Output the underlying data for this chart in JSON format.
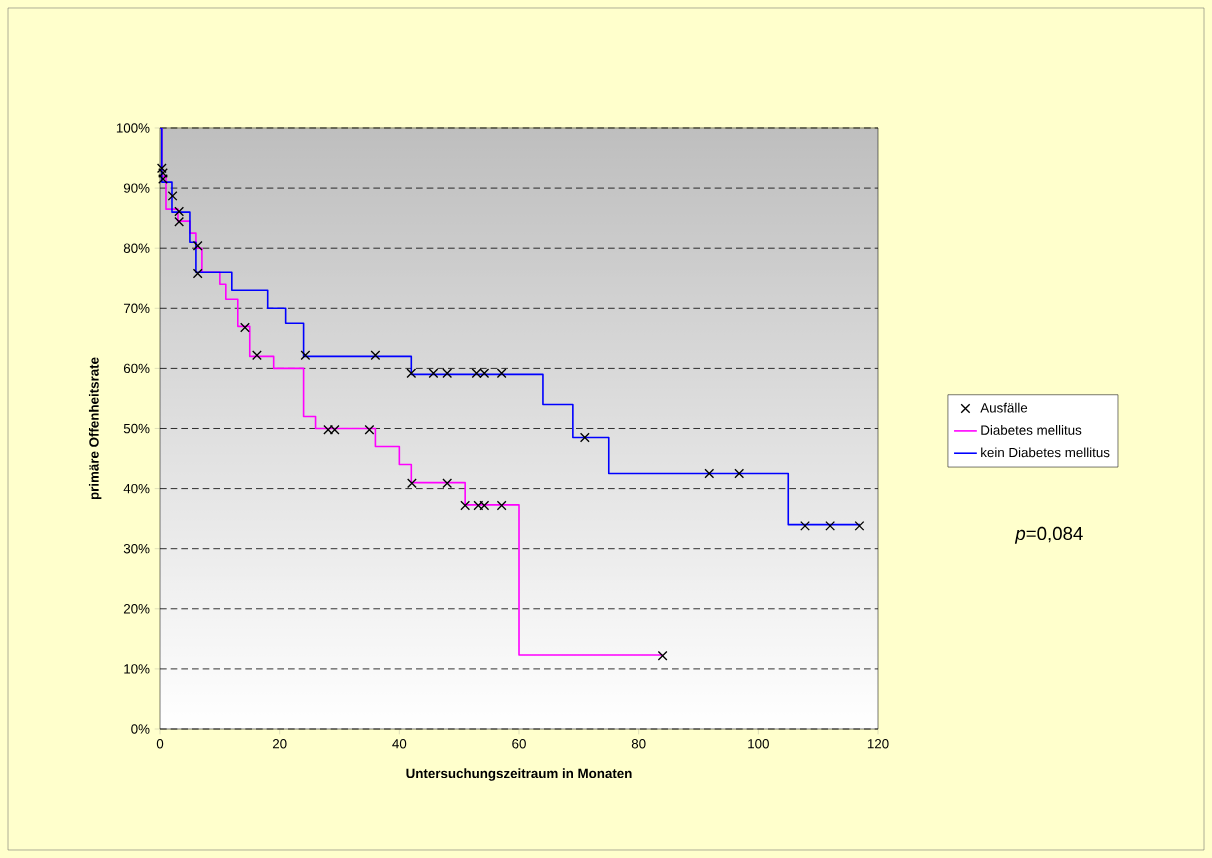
{
  "chart_data": {
    "type": "step",
    "xlabel": "Untersuchungszeitraum in Monaten",
    "ylabel": "primäre Offenheitsrate",
    "xlim": [
      0,
      120
    ],
    "xticks": [
      0,
      20,
      40,
      60,
      80,
      100,
      120
    ],
    "ylim": [
      0,
      100
    ],
    "yticks": [
      {
        "value": 0,
        "label": "0%"
      },
      {
        "value": 10,
        "label": "10%"
      },
      {
        "value": 20,
        "label": "20%"
      },
      {
        "value": 30,
        "label": "30%"
      },
      {
        "value": 40,
        "label": "40%"
      },
      {
        "value": 50,
        "label": "50%"
      },
      {
        "value": 60,
        "label": "60%"
      },
      {
        "value": 70,
        "label": "70%"
      },
      {
        "value": 80,
        "label": "80%"
      },
      {
        "value": 90,
        "label": "90%"
      },
      {
        "value": 100,
        "label": "100%"
      }
    ],
    "grid": "y",
    "legend": "right",
    "annotations": [
      "*p*=0,084"
    ],
    "series": [
      {
        "name": "Ausfälle",
        "type": "scatter",
        "marker": "cross",
        "color": "#000000",
        "x": [
          0.3,
          0.5,
          0.5,
          2.1,
          3.2,
          3.2,
          6.3,
          6.3,
          14.2,
          16.2,
          24.3,
          36,
          42,
          45.7,
          48,
          52.9,
          54.2,
          57.1,
          71,
          91.8,
          96.8,
          107.8,
          112,
          116.9,
          28.1,
          29.2,
          35,
          42.1,
          48,
          51,
          53.2,
          54.2,
          57.1,
          84
        ],
        "values": [
          93.3,
          92.5,
          91.5,
          88.7,
          86.1,
          84.4,
          80.4,
          75.8,
          66.8,
          62.2,
          62.2,
          62.2,
          59.2,
          59.2,
          59.2,
          59.2,
          59.2,
          59.2,
          48.5,
          42.5,
          42.5,
          33.8,
          33.8,
          33.8,
          49.8,
          49.8,
          49.8,
          40.9,
          40.9,
          37.2,
          37.2,
          37.2,
          37.2,
          12.2
        ]
      },
      {
        "name": "Diabetes mellitus",
        "color": "#ff00ff",
        "x": [
          0,
          0.3,
          1,
          3,
          5,
          6,
          7,
          10,
          11,
          13,
          15,
          19,
          24,
          26,
          36,
          40,
          42,
          51,
          60,
          84
        ],
        "values": [
          100,
          92,
          86.5,
          84.5,
          82.5,
          80,
          76,
          74,
          71.5,
          67,
          62,
          60,
          52,
          50,
          47,
          44,
          41,
          37.3,
          12.3,
          12.3
        ]
      },
      {
        "name": "kein Diabetes mellitus",
        "color": "#0000ff",
        "x": [
          0,
          0.3,
          2,
          5,
          6,
          12,
          18,
          21,
          24,
          42,
          64,
          69,
          75,
          105,
          117
        ],
        "values": [
          100,
          91,
          86,
          81,
          76,
          73,
          70,
          67.5,
          62,
          59,
          54,
          48.5,
          42.5,
          34,
          34
        ]
      }
    ]
  }
}
